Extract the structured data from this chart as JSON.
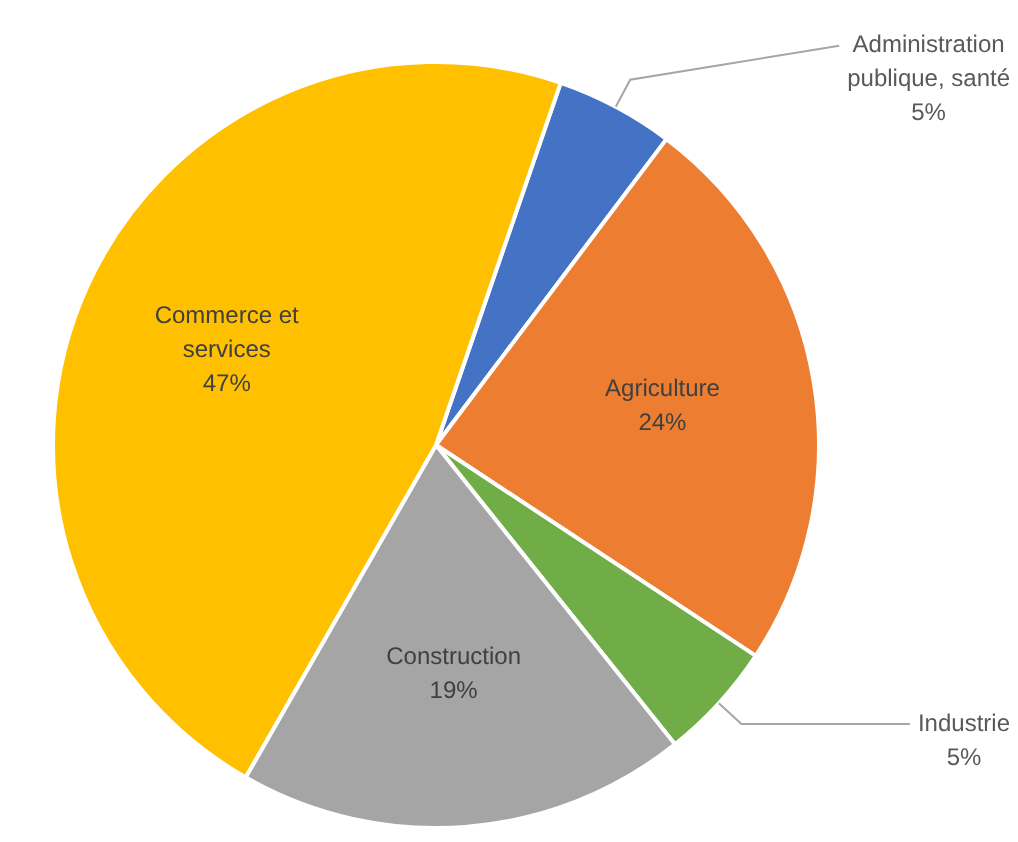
{
  "chart_data": {
    "type": "pie",
    "categories": [
      "Administration publique, santé",
      "Agriculture",
      "Industrie",
      "Construction",
      "Commerce et services"
    ],
    "values": [
      5,
      24,
      5,
      19,
      47
    ],
    "colors": [
      "#4472c4",
      "#ed7d31",
      "#70ad47",
      "#a5a5a5",
      "#ffc000"
    ],
    "value_labels": [
      "5%",
      "24%",
      "5%",
      "19%",
      "47%"
    ],
    "legend": false
  }
}
